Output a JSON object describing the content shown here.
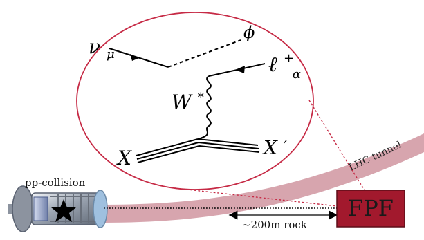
{
  "diagram": {
    "particles": {
      "neutrino": "ν",
      "neutrino_subscript": "μ",
      "scalar": "ϕ",
      "lepton": "ℓ",
      "lepton_superscript": "+",
      "lepton_subscript": "α",
      "w_boson": "W",
      "w_superscript": "*",
      "x_in": "X",
      "x_out": "X",
      "x_out_prime": "′"
    },
    "labels": {
      "pp_collision": "pp-collision",
      "lhc_tunnel": "LHC tunnel",
      "distance": "~200m rock",
      "detector": "FPF"
    },
    "colors": {
      "accent": "#c62a45",
      "tunnel": "#d7a5ae",
      "detector_fill": "#a2192d",
      "line": "#000000",
      "gray": "#8a8a8a"
    }
  }
}
